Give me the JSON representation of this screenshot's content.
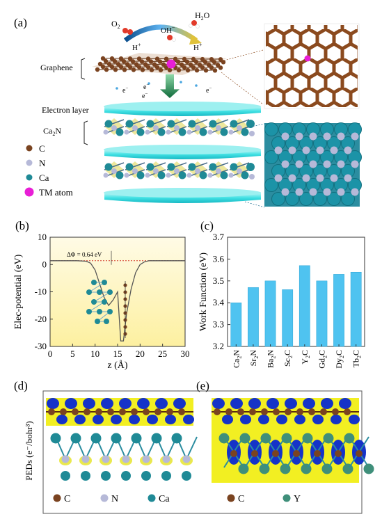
{
  "panel_a": {
    "label": "(a)",
    "reaction": {
      "o2": "O",
      "o2_sub": "2",
      "oh": "OH",
      "oh_sup": "−",
      "h2o": "H",
      "h2o_sub": "2",
      "h2o_tail": "O",
      "h_left": "H",
      "h_right": "H",
      "h_sup": "+"
    },
    "graphene_label": "Graphene",
    "electron_layer_label": "Electron layer",
    "ca2n_label": "Ca",
    "ca2n_sub": "2",
    "ca2n_tail": "N",
    "electron_mark": "e",
    "electron_sup": "−",
    "legend": [
      {
        "symbol": "C",
        "color": "#7a4320"
      },
      {
        "symbol": "N",
        "color": "#b6b9d8"
      },
      {
        "symbol": "Ca",
        "color": "#1f8a96"
      },
      {
        "symbol": "TM atom",
        "color": "#e81ed6"
      }
    ]
  },
  "panel_b": {
    "label": "(b)",
    "annotation": "ΔΦ = 0.64 eV"
  },
  "panel_c": {
    "label": "(c)"
  },
  "panel_d": {
    "label": "(d)",
    "ylabel": "PEDs (e⁻/bohr³)",
    "legend": [
      {
        "symbol": "C",
        "color": "#7a4320"
      },
      {
        "symbol": "N",
        "color": "#b6b9d8"
      },
      {
        "symbol": "Ca",
        "color": "#1f8a96"
      }
    ]
  },
  "panel_e": {
    "label": "(e)",
    "legend": [
      {
        "symbol": "C",
        "color": "#7a4320"
      },
      {
        "symbol": "Y",
        "color": "#3f8f7a"
      }
    ]
  },
  "chart_data": [
    {
      "type": "line",
      "panel": "b",
      "xlabel": "z (Å)",
      "ylabel": "Elec-potential (eV)",
      "xlim": [
        0,
        30
      ],
      "ylim": [
        -30,
        10
      ],
      "xticks": [
        "0",
        "5",
        "10",
        "15",
        "20",
        "25",
        "30"
      ],
      "yticks": [
        "10",
        "0",
        "-10",
        "-20",
        "-30"
      ],
      "series": [
        {
          "x": [
            0,
            6,
            8,
            9,
            10,
            11,
            12,
            13,
            14,
            15,
            15.7,
            16.3,
            17,
            18,
            19,
            20,
            21,
            22,
            24,
            30
          ],
          "y": [
            1.4,
            1.4,
            1.2,
            0.5,
            -2,
            -7,
            -12,
            -15,
            -13,
            -10,
            -28,
            -28,
            -18,
            -9,
            -3,
            0,
            1,
            1.4,
            1.4,
            1.4
          ]
        }
      ],
      "reference_level": 1.4,
      "grid": false
    },
    {
      "type": "bar",
      "panel": "c",
      "ylabel": "Work Function (eV)",
      "ylim": [
        3.2,
        3.7
      ],
      "yticks": [
        "3.2",
        "3.3",
        "3.4",
        "3.5",
        "3.6",
        "3.7"
      ],
      "categories": [
        {
          "base": "Ca",
          "sub": "2",
          "tail": "N"
        },
        {
          "base": "Sr",
          "sub": "2",
          "tail": "N"
        },
        {
          "base": "Ba",
          "sub": "2",
          "tail": "N"
        },
        {
          "base": "Sc",
          "sub": "2",
          "tail": "C"
        },
        {
          "base": "Y",
          "sub": "2",
          "tail": "C"
        },
        {
          "base": "Gd",
          "sub": "2",
          "tail": "C"
        },
        {
          "base": "Dy",
          "sub": "2",
          "tail": "C"
        },
        {
          "base": "Tb",
          "sub": "2",
          "tail": "C"
        }
      ],
      "values": [
        3.4,
        3.47,
        3.5,
        3.46,
        3.57,
        3.5,
        3.53,
        3.54
      ],
      "bar_color": "#4fc3f0",
      "grid": false
    }
  ]
}
